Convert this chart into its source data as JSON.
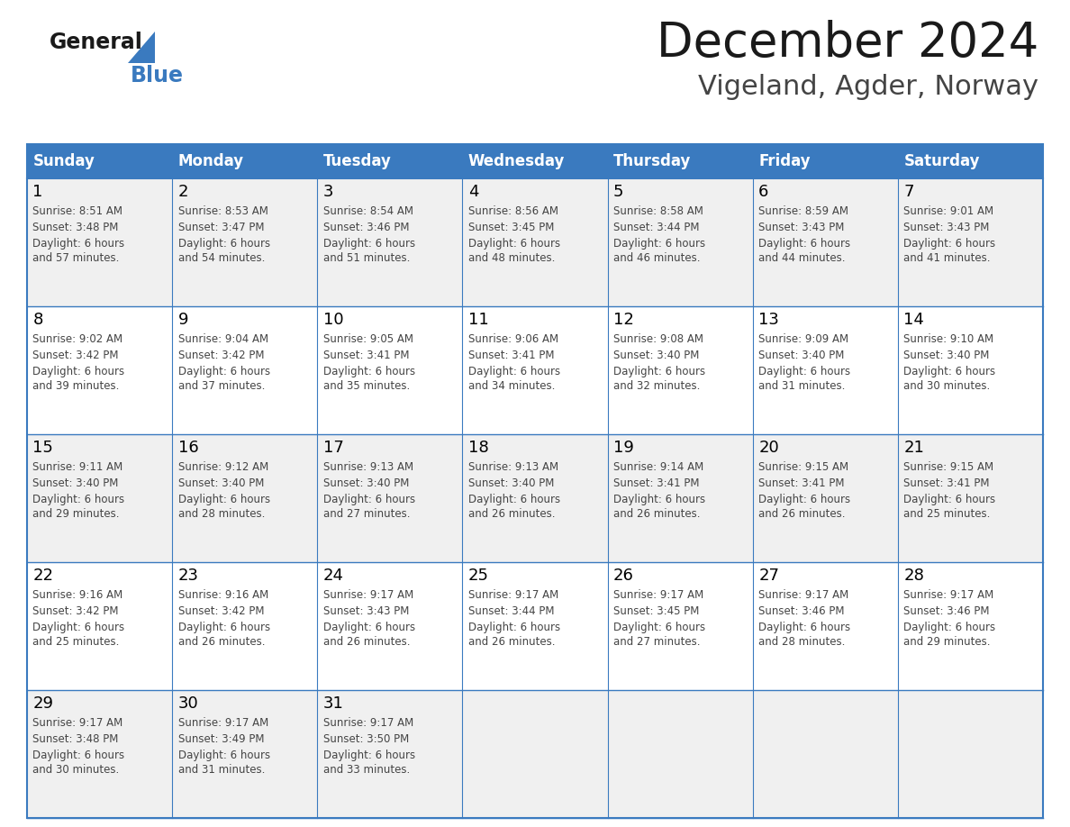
{
  "title": "December 2024",
  "subtitle": "Vigeland, Agder, Norway",
  "days_of_week": [
    "Sunday",
    "Monday",
    "Tuesday",
    "Wednesday",
    "Thursday",
    "Friday",
    "Saturday"
  ],
  "header_bg": "#3a7abf",
  "header_text": "#ffffff",
  "row_bg_odd": "#f0f0f0",
  "row_bg_even": "#ffffff",
  "border_color": "#3a7abf",
  "day_num_color": "#000000",
  "detail_color": "#444444",
  "title_color": "#1a1a1a",
  "subtitle_color": "#444444",
  "logo_general_color": "#1a1a1a",
  "logo_blue_color": "#3a7abf",
  "calendar_data": [
    [
      {
        "day": 1,
        "sunrise": "8:51 AM",
        "sunset": "3:48 PM",
        "daylight": "6 hours and 57 minutes."
      },
      {
        "day": 2,
        "sunrise": "8:53 AM",
        "sunset": "3:47 PM",
        "daylight": "6 hours and 54 minutes."
      },
      {
        "day": 3,
        "sunrise": "8:54 AM",
        "sunset": "3:46 PM",
        "daylight": "6 hours and 51 minutes."
      },
      {
        "day": 4,
        "sunrise": "8:56 AM",
        "sunset": "3:45 PM",
        "daylight": "6 hours and 48 minutes."
      },
      {
        "day": 5,
        "sunrise": "8:58 AM",
        "sunset": "3:44 PM",
        "daylight": "6 hours and 46 minutes."
      },
      {
        "day": 6,
        "sunrise": "8:59 AM",
        "sunset": "3:43 PM",
        "daylight": "6 hours and 44 minutes."
      },
      {
        "day": 7,
        "sunrise": "9:01 AM",
        "sunset": "3:43 PM",
        "daylight": "6 hours and 41 minutes."
      }
    ],
    [
      {
        "day": 8,
        "sunrise": "9:02 AM",
        "sunset": "3:42 PM",
        "daylight": "6 hours and 39 minutes."
      },
      {
        "day": 9,
        "sunrise": "9:04 AM",
        "sunset": "3:42 PM",
        "daylight": "6 hours and 37 minutes."
      },
      {
        "day": 10,
        "sunrise": "9:05 AM",
        "sunset": "3:41 PM",
        "daylight": "6 hours and 35 minutes."
      },
      {
        "day": 11,
        "sunrise": "9:06 AM",
        "sunset": "3:41 PM",
        "daylight": "6 hours and 34 minutes."
      },
      {
        "day": 12,
        "sunrise": "9:08 AM",
        "sunset": "3:40 PM",
        "daylight": "6 hours and 32 minutes."
      },
      {
        "day": 13,
        "sunrise": "9:09 AM",
        "sunset": "3:40 PM",
        "daylight": "6 hours and 31 minutes."
      },
      {
        "day": 14,
        "sunrise": "9:10 AM",
        "sunset": "3:40 PM",
        "daylight": "6 hours and 30 minutes."
      }
    ],
    [
      {
        "day": 15,
        "sunrise": "9:11 AM",
        "sunset": "3:40 PM",
        "daylight": "6 hours and 29 minutes."
      },
      {
        "day": 16,
        "sunrise": "9:12 AM",
        "sunset": "3:40 PM",
        "daylight": "6 hours and 28 minutes."
      },
      {
        "day": 17,
        "sunrise": "9:13 AM",
        "sunset": "3:40 PM",
        "daylight": "6 hours and 27 minutes."
      },
      {
        "day": 18,
        "sunrise": "9:13 AM",
        "sunset": "3:40 PM",
        "daylight": "6 hours and 26 minutes."
      },
      {
        "day": 19,
        "sunrise": "9:14 AM",
        "sunset": "3:41 PM",
        "daylight": "6 hours and 26 minutes."
      },
      {
        "day": 20,
        "sunrise": "9:15 AM",
        "sunset": "3:41 PM",
        "daylight": "6 hours and 26 minutes."
      },
      {
        "day": 21,
        "sunrise": "9:15 AM",
        "sunset": "3:41 PM",
        "daylight": "6 hours and 25 minutes."
      }
    ],
    [
      {
        "day": 22,
        "sunrise": "9:16 AM",
        "sunset": "3:42 PM",
        "daylight": "6 hours and 25 minutes."
      },
      {
        "day": 23,
        "sunrise": "9:16 AM",
        "sunset": "3:42 PM",
        "daylight": "6 hours and 26 minutes."
      },
      {
        "day": 24,
        "sunrise": "9:17 AM",
        "sunset": "3:43 PM",
        "daylight": "6 hours and 26 minutes."
      },
      {
        "day": 25,
        "sunrise": "9:17 AM",
        "sunset": "3:44 PM",
        "daylight": "6 hours and 26 minutes."
      },
      {
        "day": 26,
        "sunrise": "9:17 AM",
        "sunset": "3:45 PM",
        "daylight": "6 hours and 27 minutes."
      },
      {
        "day": 27,
        "sunrise": "9:17 AM",
        "sunset": "3:46 PM",
        "daylight": "6 hours and 28 minutes."
      },
      {
        "day": 28,
        "sunrise": "9:17 AM",
        "sunset": "3:46 PM",
        "daylight": "6 hours and 29 minutes."
      }
    ],
    [
      {
        "day": 29,
        "sunrise": "9:17 AM",
        "sunset": "3:48 PM",
        "daylight": "6 hours and 30 minutes."
      },
      {
        "day": 30,
        "sunrise": "9:17 AM",
        "sunset": "3:49 PM",
        "daylight": "6 hours and 31 minutes."
      },
      {
        "day": 31,
        "sunrise": "9:17 AM",
        "sunset": "3:50 PM",
        "daylight": "6 hours and 33 minutes."
      },
      null,
      null,
      null,
      null
    ]
  ]
}
